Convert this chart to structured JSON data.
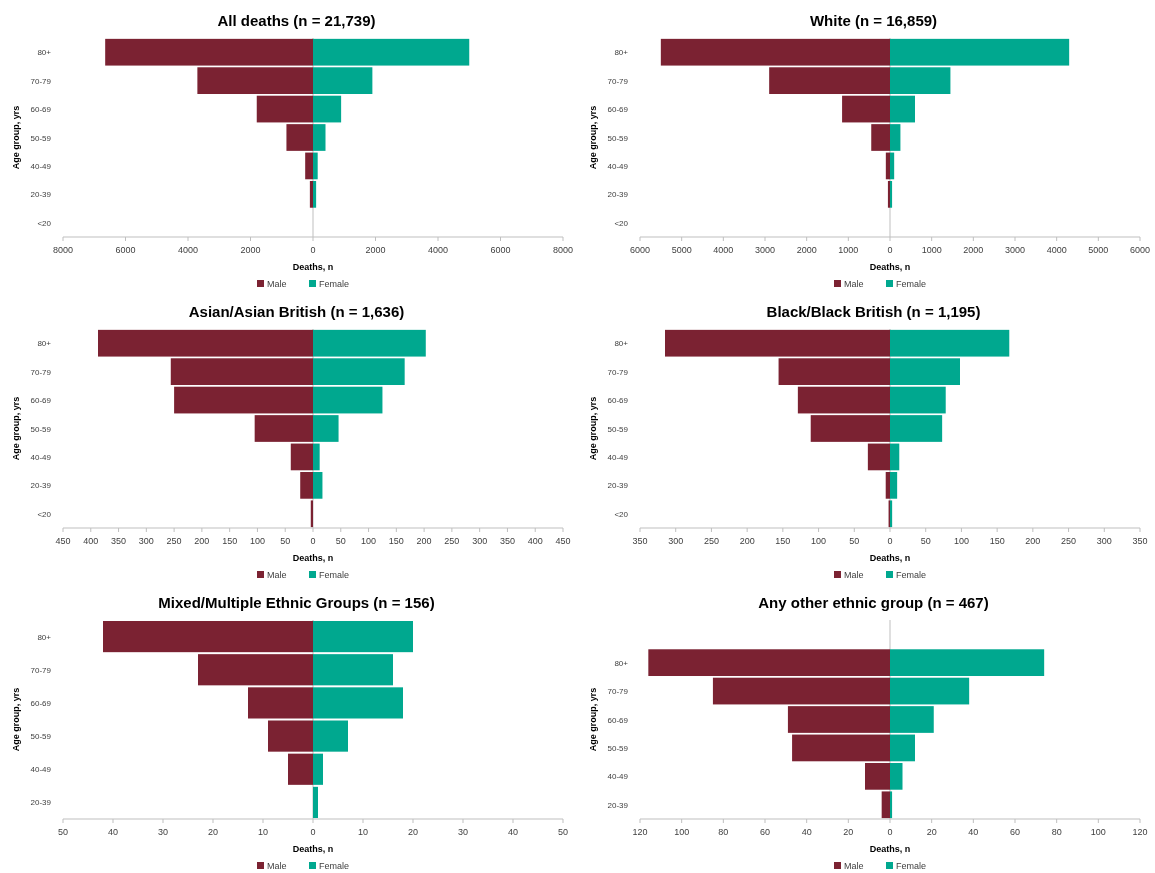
{
  "chart_data": [
    {
      "type": "bar",
      "orientation": "horizontal",
      "stacked": true,
      "title": "All deaths (n = 21,739)",
      "xlabel": "Deaths, n",
      "ylabel": "Age group, yrs",
      "legend": "bottom",
      "categories": [
        "80+",
        "70-79",
        "60-69",
        "50-59",
        "40-49",
        "20-39",
        "<20"
      ],
      "series": [
        {
          "name": "Male",
          "color": "#7b2232",
          "values": [
            -6650,
            -3700,
            -1800,
            -850,
            -250,
            -100,
            0
          ]
        },
        {
          "name": "Female",
          "color": "#00a88f",
          "values": [
            5000,
            1900,
            900,
            400,
            150,
            100,
            0
          ]
        }
      ],
      "xlim": [
        -8000,
        8000
      ],
      "xticks": [
        {
          "value": -8000,
          "label": "8000"
        },
        {
          "value": -6000,
          "label": "6000"
        },
        {
          "value": -4000,
          "label": "4000"
        },
        {
          "value": -2000,
          "label": "2000"
        },
        0,
        2000,
        4000,
        6000,
        8000
      ]
    },
    {
      "type": "bar",
      "orientation": "horizontal",
      "stacked": true,
      "title": "White (n = 16,859)",
      "xlabel": "Deaths, n",
      "ylabel": "Age group, yrs",
      "legend": "bottom",
      "categories": [
        "80+",
        "70-79",
        "60-69",
        "50-59",
        "40-49",
        "20-39",
        "<20"
      ],
      "series": [
        {
          "name": "Male",
          "color": "#7b2232",
          "values": [
            -5500,
            -2900,
            -1150,
            -450,
            -100,
            -50,
            0
          ]
        },
        {
          "name": "Female",
          "color": "#00a88f",
          "values": [
            4300,
            1450,
            600,
            250,
            100,
            50,
            0
          ]
        }
      ],
      "xlim": [
        -6000,
        6000
      ],
      "xticks": [
        {
          "value": -6000,
          "label": "6000"
        },
        {
          "value": -5000,
          "label": "5000"
        },
        {
          "value": -4000,
          "label": "4000"
        },
        {
          "value": -3000,
          "label": "3000"
        },
        {
          "value": -2000,
          "label": "2000"
        },
        {
          "value": -1000,
          "label": "1000"
        },
        0,
        1000,
        2000,
        3000,
        4000,
        5000,
        6000
      ]
    },
    {
      "type": "bar",
      "orientation": "horizontal",
      "stacked": true,
      "title": "Asian/Asian British (n = 1,636)",
      "xlabel": "Deaths, n",
      "ylabel": "Age group, yrs",
      "legend": "bottom",
      "categories": [
        "80+",
        "70-79",
        "60-69",
        "50-59",
        "40-49",
        "20-39",
        "<20"
      ],
      "series": [
        {
          "name": "Male",
          "color": "#7b2232",
          "values": [
            -387,
            -256,
            -250,
            -105,
            -40,
            -23,
            -4
          ]
        },
        {
          "name": "Female",
          "color": "#00a88f",
          "values": [
            203,
            165,
            125,
            46,
            12,
            17,
            0
          ]
        }
      ],
      "xlim": [
        -450,
        450
      ],
      "xticks": [
        {
          "value": -450,
          "label": "450"
        },
        {
          "value": -400,
          "label": "400"
        },
        {
          "value": -350,
          "label": "350"
        },
        {
          "value": -300,
          "label": "300"
        },
        {
          "value": -250,
          "label": "250"
        },
        {
          "value": -200,
          "label": "200"
        },
        {
          "value": -150,
          "label": "150"
        },
        {
          "value": -100,
          "label": "100"
        },
        {
          "value": -50,
          "label": "50"
        },
        0,
        50,
        100,
        150,
        200,
        250,
        300,
        350,
        400,
        450
      ]
    },
    {
      "type": "bar",
      "orientation": "horizontal",
      "stacked": true,
      "title": "Black/Black British (n = 1,195)",
      "xlabel": "Deaths, n",
      "ylabel": "Age group, yrs",
      "legend": "bottom",
      "categories": [
        "80+",
        "70-79",
        "60-69",
        "50-59",
        "40-49",
        "20-39",
        "<20"
      ],
      "series": [
        {
          "name": "Male",
          "color": "#7b2232",
          "values": [
            -315,
            -156,
            -129,
            -111,
            -31,
            -6,
            -2
          ]
        },
        {
          "name": "Female",
          "color": "#00a88f",
          "values": [
            167,
            98,
            78,
            73,
            13,
            10,
            3
          ]
        }
      ],
      "xlim": [
        -350,
        350
      ],
      "xticks": [
        {
          "value": -350,
          "label": "350"
        },
        {
          "value": -300,
          "label": "300"
        },
        {
          "value": -250,
          "label": "250"
        },
        {
          "value": -200,
          "label": "200"
        },
        {
          "value": -150,
          "label": "150"
        },
        {
          "value": -100,
          "label": "100"
        },
        {
          "value": -50,
          "label": "50"
        },
        0,
        50,
        100,
        150,
        200,
        250,
        300,
        350
      ]
    },
    {
      "type": "bar",
      "orientation": "horizontal",
      "stacked": true,
      "title": "Mixed/Multiple Ethnic Groups (n = 156)",
      "xlabel": "Deaths, n",
      "ylabel": "Age group, yrs",
      "legend": "bottom",
      "categories": [
        "80+",
        "70-79",
        "60-69",
        "50-59",
        "40-49",
        "20-39"
      ],
      "series": [
        {
          "name": "Male",
          "color": "#7b2232",
          "values": [
            -42,
            -23,
            -13,
            -9,
            -5,
            0
          ]
        },
        {
          "name": "Female",
          "color": "#00a88f",
          "values": [
            20,
            16,
            18,
            7,
            2,
            1
          ]
        }
      ],
      "xlim": [
        -50,
        50
      ],
      "xticks": [
        {
          "value": -50,
          "label": "50"
        },
        {
          "value": -40,
          "label": "40"
        },
        {
          "value": -30,
          "label": "30"
        },
        {
          "value": -20,
          "label": "20"
        },
        {
          "value": -10,
          "label": "10"
        },
        0,
        10,
        20,
        30,
        40,
        50
      ]
    },
    {
      "type": "bar",
      "orientation": "horizontal",
      "stacked": true,
      "title": "Any other ethnic group (n = 467)",
      "xlabel": "Deaths, n",
      "ylabel": "Age group, yrs",
      "legend": "bottom",
      "categories": [
        null,
        "80+",
        "70-79",
        "60-69",
        "50-59",
        "40-49",
        "20-39"
      ],
      "series": [
        {
          "name": "Male",
          "color": "#7b2232",
          "values": [
            null,
            -116,
            -85,
            -49,
            -47,
            -12,
            -4
          ]
        },
        {
          "name": "Female",
          "color": "#00a88f",
          "values": [
            null,
            74,
            38,
            21,
            12,
            6,
            1
          ]
        }
      ],
      "xlim": [
        -120,
        120
      ],
      "xticks": [
        {
          "value": -120,
          "label": "120"
        },
        {
          "value": -100,
          "label": "100"
        },
        {
          "value": -80,
          "label": "80"
        },
        {
          "value": -60,
          "label": "60"
        },
        {
          "value": -40,
          "label": "40"
        },
        {
          "value": -20,
          "label": "20"
        },
        0,
        20,
        40,
        60,
        80,
        100,
        120
      ]
    }
  ]
}
